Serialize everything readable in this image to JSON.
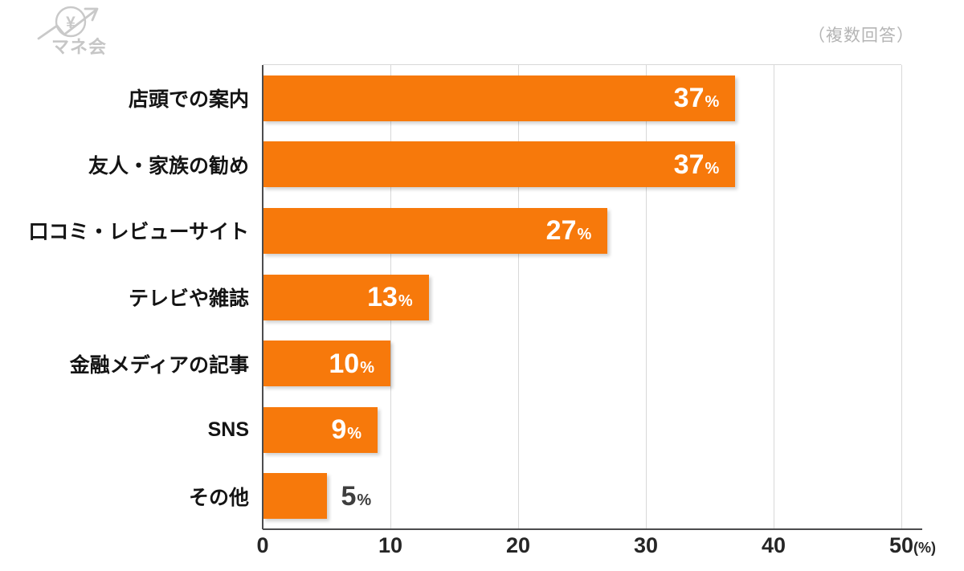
{
  "header": {
    "logo_text": "マネ会",
    "note": "（複数回答）"
  },
  "chart_data": {
    "type": "bar",
    "orientation": "horizontal",
    "title": "",
    "categories": [
      "店頭での案内",
      "友人・家族の勧め",
      "口コミ・レビューサイト",
      "テレビや雑誌",
      "金融メディアの記事",
      "SNS",
      "その他"
    ],
    "values": [
      37,
      37,
      27,
      13,
      10,
      9,
      5
    ],
    "value_suffix": "%",
    "xlim": [
      0,
      50
    ],
    "x_ticks": [
      0,
      10,
      20,
      30,
      40,
      50
    ],
    "x_unit_label": "(%)",
    "grid": true,
    "legend": false,
    "bar_color": "#f7790b",
    "label_positions": [
      "inside",
      "inside",
      "inside",
      "inside",
      "inside",
      "inside",
      "outside"
    ]
  }
}
